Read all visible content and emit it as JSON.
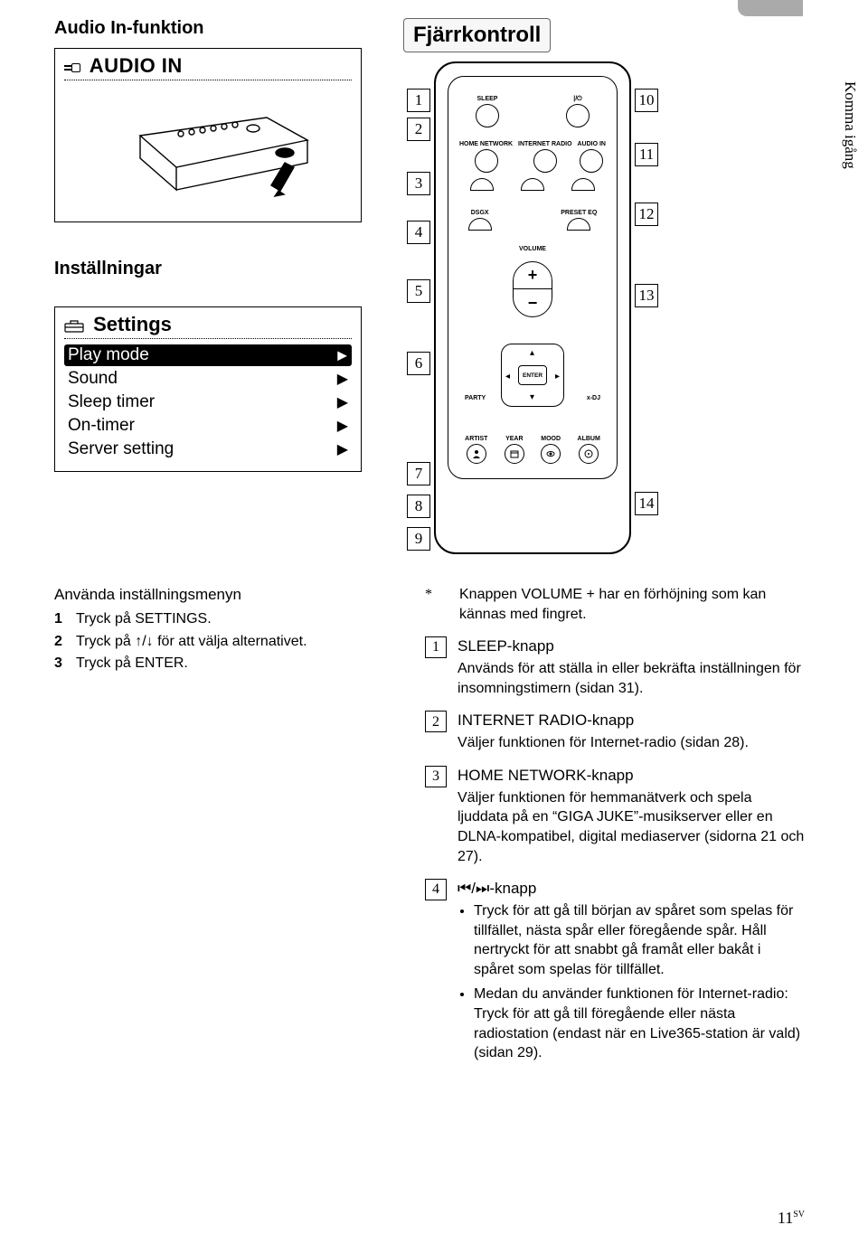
{
  "sections": {
    "audio_in_heading": "Audio In-funktion",
    "audio_in_panel_title": "AUDIO IN",
    "installningar_heading": "Inställningar",
    "settings_panel_title": "Settings",
    "fjarrkontroll_heading": "Fjärrkontroll"
  },
  "settings_menu": [
    {
      "label": "Play mode",
      "selected": true
    },
    {
      "label": "Sound",
      "selected": false
    },
    {
      "label": "Sleep timer",
      "selected": false
    },
    {
      "label": "On-timer",
      "selected": false
    },
    {
      "label": "Server setting",
      "selected": false
    }
  ],
  "side_text": "Komma igång",
  "remote": {
    "left_callouts": [
      "1",
      "2",
      "3",
      "4",
      "5",
      "6",
      "7",
      "8",
      "9"
    ],
    "right_callouts": [
      "10",
      "11",
      "12",
      "13",
      "14"
    ],
    "row1_labels": [
      "SLEEP",
      "",
      "⏻"
    ],
    "row2_labels": [
      "HOME NETWORK",
      "INTERNET RADIO",
      "AUDIO IN"
    ],
    "row3_labels": [
      "⏮",
      "⏯",
      "⏭"
    ],
    "row4_labels": [
      "DSGX",
      "",
      "PRESET EQ"
    ],
    "volume_label": "VOLUME",
    "enter_label": "ENTER",
    "party_label": "PARTY",
    "xdj_label": "x-DJ",
    "bottom_labels": [
      "ARTIST",
      "YEAR",
      "MOOD",
      "ALBUM"
    ]
  },
  "instructions": {
    "title": "Använda inställningsmenyn",
    "steps": [
      "Tryck på SETTINGS.",
      "Tryck på ↑/↓ för att välja alternativet.",
      "Tryck på ENTER."
    ]
  },
  "note_star": "Knappen VOLUME + har en förhöjning som kan kännas med fingret.",
  "descriptions": [
    {
      "num": "1",
      "title": "SLEEP-knapp",
      "body": "Används för att ställa in eller bekräfta inställningen för insomningstimern (sidan 31)."
    },
    {
      "num": "2",
      "title": "INTERNET RADIO-knapp",
      "body": "Väljer funktionen för Internet-radio (sidan 28)."
    },
    {
      "num": "3",
      "title": "HOME NETWORK-knapp",
      "body": "Väljer funktionen för hemmanätverk och spela ljuddata på en “GIGA JUKE”-musikserver eller en DLNA-kompatibel, digital mediaserver (sidorna 21 och 27)."
    },
    {
      "num": "4",
      "title": "⏮/⏭-knapp",
      "bullets": [
        "Tryck för att gå till början av spåret som spelas för tillfället, nästa spår eller föregående spår. Håll nertryckt för att snabbt gå framåt eller bakåt i spåret som spelas för tillfället.",
        "Medan du använder funktionen för Internet-radio: Tryck för att gå till föregående eller nästa radiostation (endast när en Live365-station är vald) (sidan 29)."
      ]
    }
  ],
  "page_number": "11",
  "page_lang": "SV",
  "colors": {
    "text": "#000000",
    "bg": "#ffffff",
    "tab": "#aaaaaa"
  }
}
